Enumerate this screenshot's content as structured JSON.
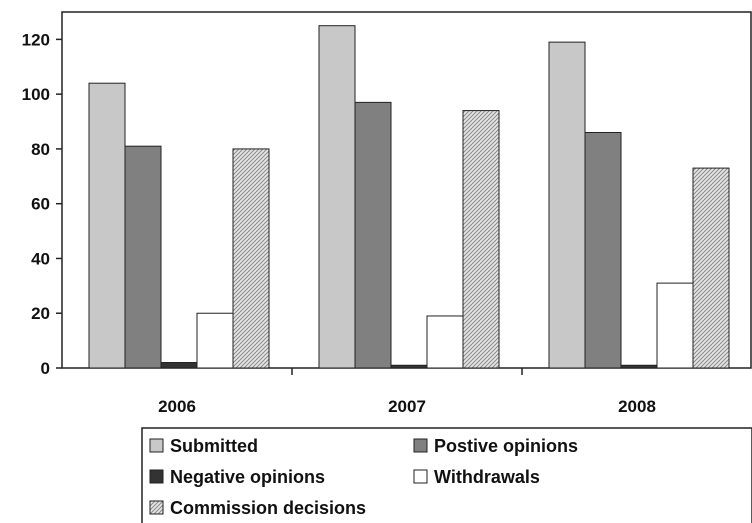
{
  "chart_data": {
    "type": "bar",
    "title": "",
    "xlabel": "",
    "ylabel": "",
    "categories": [
      "2006",
      "2007",
      "2008"
    ],
    "ylim": [
      0,
      130
    ],
    "yticks": [
      0,
      20,
      40,
      60,
      80,
      100,
      120
    ],
    "grid": false,
    "legend_position": "bottom",
    "series": [
      {
        "name": "Submitted",
        "values": [
          104,
          125,
          119
        ],
        "color": "#c8c8c8",
        "pattern": "solid"
      },
      {
        "name": "Postive opinions",
        "values": [
          81,
          97,
          86
        ],
        "color": "#808080",
        "pattern": "solid"
      },
      {
        "name": "Negative opinions",
        "values": [
          2,
          1,
          1
        ],
        "color": "#333333",
        "pattern": "solid"
      },
      {
        "name": "Withdrawals",
        "values": [
          20,
          19,
          31
        ],
        "color": "#ffffff",
        "pattern": "solid"
      },
      {
        "name": "Commission decisions",
        "values": [
          80,
          94,
          73
        ],
        "color": "#d6d6d6",
        "pattern": "hatched"
      }
    ]
  }
}
